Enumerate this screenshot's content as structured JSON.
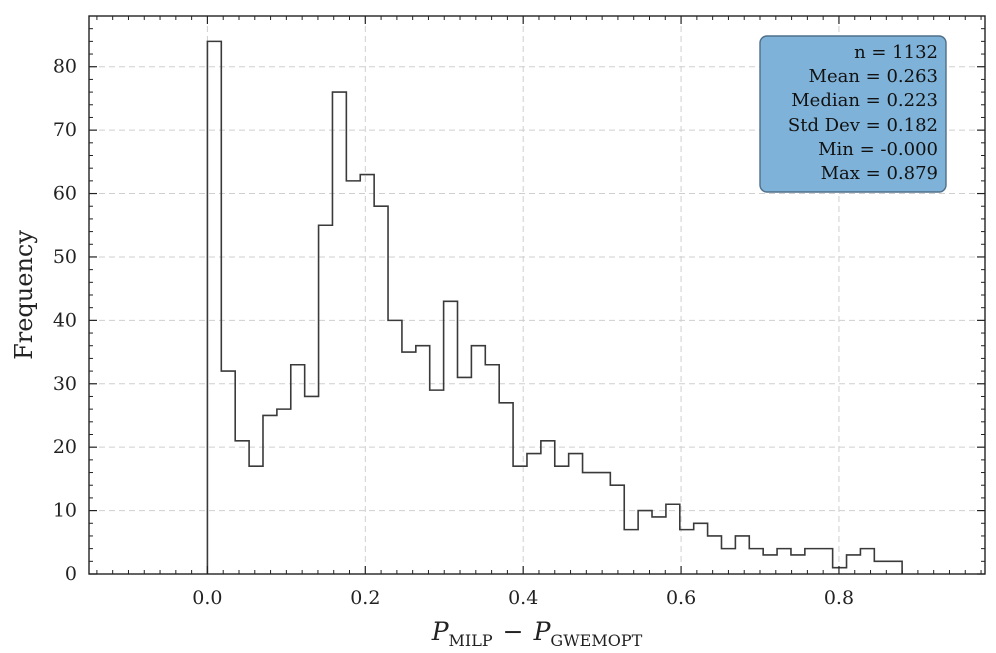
{
  "chart_data": {
    "type": "histogram",
    "title": "",
    "xlabel": {
      "main": "P",
      "sub1": "MILP",
      "minus": "−",
      "sub2": "GWEMOPT"
    },
    "ylabel": "Frequency",
    "xlim": [
      -0.15,
      0.985
    ],
    "ylim": [
      0,
      88
    ],
    "xticks": [
      0.0,
      0.2,
      0.4,
      0.6,
      0.8
    ],
    "xtick_labels": [
      "0.0",
      "0.2",
      "0.4",
      "0.6",
      "0.8"
    ],
    "yticks": [
      0,
      10,
      20,
      30,
      40,
      50,
      60,
      70,
      80
    ],
    "ytick_labels": [
      "0",
      "10",
      "20",
      "30",
      "40",
      "50",
      "60",
      "70",
      "80"
    ],
    "grid": true,
    "bin_start": 0.0,
    "bin_width": 0.0176,
    "counts": [
      84,
      32,
      21,
      17,
      25,
      26,
      33,
      28,
      55,
      76,
      62,
      63,
      58,
      40,
      35,
      36,
      29,
      43,
      31,
      36,
      33,
      27,
      17,
      19,
      21,
      17,
      19,
      16,
      16,
      14,
      7,
      10,
      9,
      11,
      7,
      8,
      6,
      4,
      6,
      4,
      3,
      4,
      3,
      4,
      4,
      1,
      3,
      4,
      2,
      2
    ],
    "stats_box": {
      "position": "top-right",
      "color": "#7fb2d8",
      "lines": [
        "n = 1132",
        "Mean = 0.263",
        "Median = 0.223",
        "Std Dev = 0.182",
        "Min = -0.000",
        "Max = 0.879"
      ]
    }
  }
}
